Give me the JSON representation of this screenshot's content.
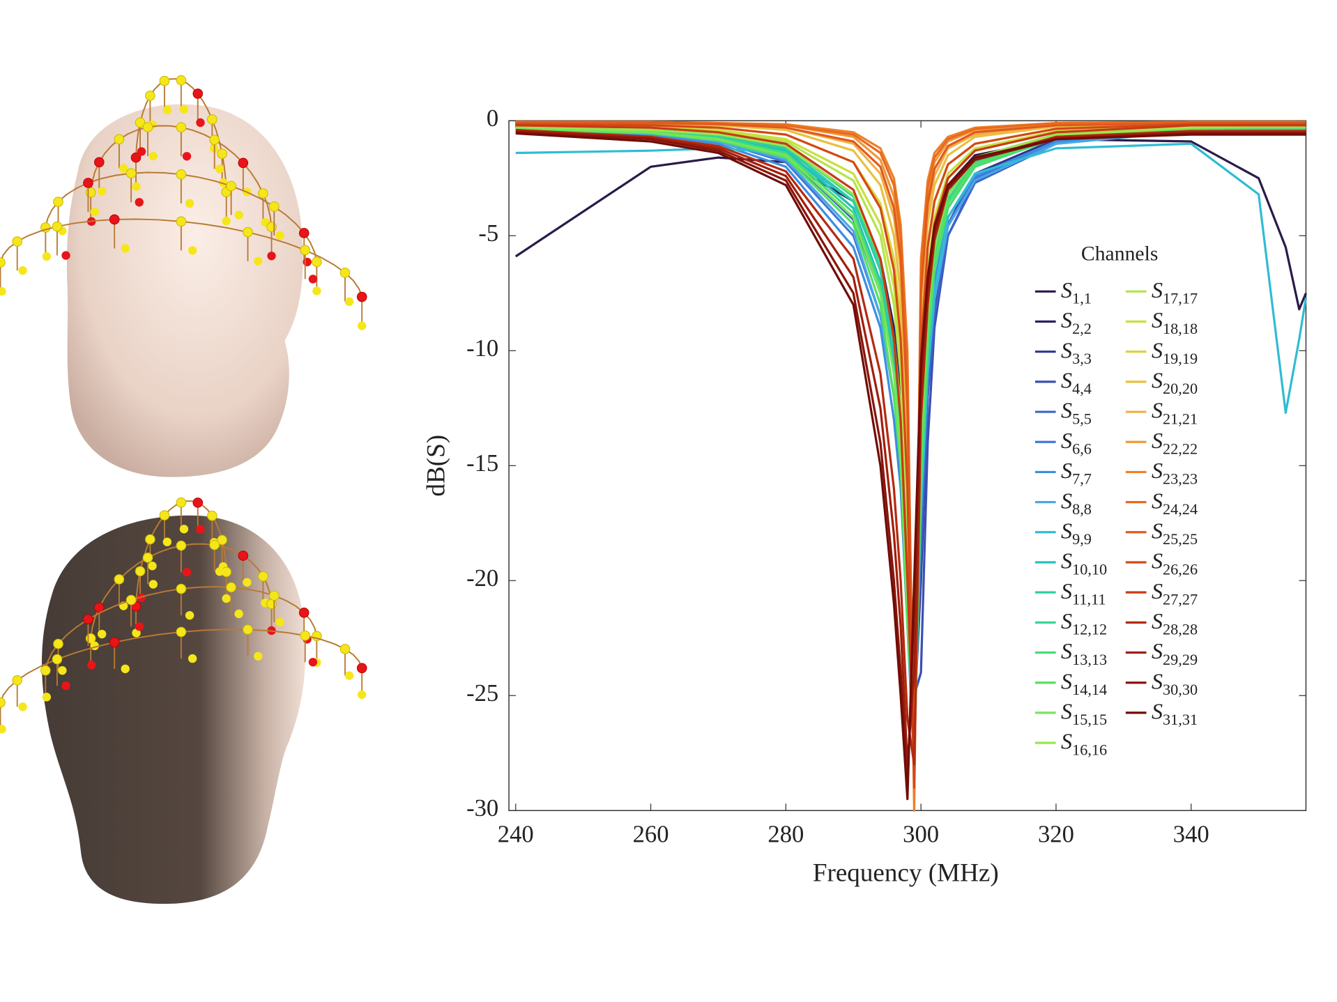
{
  "chart_data": {
    "type": "line",
    "x_label": "Frequency (MHz)",
    "y_label": "dB(S)",
    "legend_title": "Channels",
    "xlim": [
      239,
      357
    ],
    "ylim": [
      -30,
      0
    ],
    "xticks": [
      240,
      260,
      280,
      300,
      320,
      340
    ],
    "yticks": [
      0,
      -5,
      -10,
      -15,
      -20,
      -25,
      -30
    ],
    "x": [
      240,
      260,
      270,
      280,
      290,
      294,
      296,
      297,
      298,
      299,
      300,
      301,
      302,
      304,
      308,
      320,
      340,
      350,
      354,
      356,
      357
    ],
    "series": [
      {
        "name": "S1,1",
        "color": "#2a1a4a",
        "values": [
          -5.9,
          -2.0,
          -1.6,
          -1.8,
          -3.5,
          -6,
          -9,
          -12,
          -18,
          -25,
          -14,
          -8,
          -5,
          -2.8,
          -1.5,
          -0.8,
          -0.9,
          -2.5,
          -5.5,
          -8.2,
          -7.5
        ]
      },
      {
        "name": "S2,2",
        "color": "#2e2060",
        "values": [
          -0.3,
          -0.4,
          -0.6,
          -1.1,
          -3.2,
          -6,
          -9,
          -12,
          -18,
          -27,
          -16,
          -9,
          -6,
          -3.2,
          -1.6,
          -0.6,
          -0.3,
          -0.3,
          -0.3,
          -0.3,
          -0.3
        ]
      },
      {
        "name": "S3,3",
        "color": "#2f3590",
        "values": [
          -0.3,
          -0.4,
          -0.6,
          -1.2,
          -3.5,
          -6.5,
          -10,
          -13,
          -20,
          -26,
          -20,
          -12,
          -8,
          -4.5,
          -2.3,
          -0.8,
          -0.35,
          -0.3,
          -0.3,
          -0.3,
          -0.3
        ]
      },
      {
        "name": "S4,4",
        "color": "#3a4fb0",
        "values": [
          -0.3,
          -0.5,
          -0.7,
          -1.3,
          -3.8,
          -7,
          -10.5,
          -13.5,
          -19,
          -25,
          -24,
          -14,
          -9,
          -5,
          -2.6,
          -0.9,
          -0.4,
          -0.3,
          -0.3,
          -0.3,
          -0.3
        ]
      },
      {
        "name": "S5,5",
        "color": "#3d63c8",
        "values": [
          -0.3,
          -0.5,
          -0.8,
          -1.5,
          -4.3,
          -7.5,
          -11,
          -14,
          -20,
          -26,
          -19,
          -12,
          -8.5,
          -5,
          -2.7,
          -1,
          -0.4,
          -0.3,
          -0.3,
          -0.3,
          -0.3
        ]
      },
      {
        "name": "S6,6",
        "color": "#3f78d8",
        "values": [
          -0.35,
          -0.55,
          -0.9,
          -1.8,
          -5,
          -8.5,
          -12,
          -15,
          -21,
          -27,
          -17,
          -11,
          -7.5,
          -4.5,
          -2.5,
          -0.9,
          -0.4,
          -0.35,
          -0.35,
          -0.35,
          -0.35
        ]
      },
      {
        "name": "S7,7",
        "color": "#3b8ee0",
        "values": [
          -0.4,
          -0.6,
          -1,
          -2,
          -5.5,
          -9,
          -13,
          -16,
          -22,
          -28,
          -16,
          -10,
          -7,
          -4.2,
          -2.4,
          -0.9,
          -0.4,
          -0.35,
          -0.35,
          -0.35,
          -0.35
        ]
      },
      {
        "name": "S8,8",
        "color": "#4aa6e6",
        "values": [
          -0.35,
          -0.55,
          -0.9,
          -1.7,
          -4.8,
          -8.5,
          -12,
          -15,
          -21,
          -26,
          -17,
          -11,
          -7.8,
          -4.6,
          -2.6,
          -1,
          -0.45,
          -0.4,
          -0.4,
          -0.4,
          -0.4
        ]
      },
      {
        "name": "S9,9",
        "color": "#30bcd4",
        "values": [
          -1.4,
          -1.3,
          -1.2,
          -1.4,
          -3.5,
          -6.5,
          -10,
          -13,
          -19,
          -25,
          -17,
          -11,
          -7.5,
          -4.2,
          -2.3,
          -1.2,
          -1.0,
          -3.2,
          -12.7,
          -9.5,
          -7.7
        ]
      },
      {
        "name": "S10,10",
        "color": "#20c4b8",
        "values": [
          -0.3,
          -0.5,
          -0.7,
          -1.3,
          -3.8,
          -7,
          -10.5,
          -14,
          -21,
          -27,
          -15,
          -9,
          -6,
          -3.5,
          -1.8,
          -0.7,
          -0.35,
          -0.3,
          -0.3,
          -0.3,
          -0.3
        ]
      },
      {
        "name": "S11,11",
        "color": "#2ccfa0",
        "values": [
          -0.3,
          -0.45,
          -0.7,
          -1.2,
          -3.5,
          -6.5,
          -10,
          -13,
          -20,
          -26,
          -14,
          -8.5,
          -5.5,
          -3.2,
          -1.7,
          -0.65,
          -0.3,
          -0.3,
          -0.3,
          -0.3,
          -0.3
        ]
      },
      {
        "name": "S12,12",
        "color": "#3ad690",
        "values": [
          -0.25,
          -0.4,
          -0.6,
          -1.1,
          -3.3,
          -6.2,
          -9.5,
          -12.5,
          -19,
          -27,
          -15,
          -9,
          -6,
          -3.4,
          -1.8,
          -0.7,
          -0.3,
          -0.25,
          -0.25,
          -0.25,
          -0.25
        ]
      },
      {
        "name": "S13,13",
        "color": "#45dc78",
        "values": [
          -0.3,
          -0.5,
          -0.75,
          -1.4,
          -4,
          -7.2,
          -11,
          -14,
          -21,
          -28,
          -16,
          -10,
          -6.5,
          -3.8,
          -2,
          -0.75,
          -0.35,
          -0.3,
          -0.3,
          -0.3,
          -0.3
        ]
      },
      {
        "name": "S14,14",
        "color": "#55e060",
        "values": [
          -0.35,
          -0.55,
          -0.85,
          -1.6,
          -4.5,
          -8,
          -12,
          -15,
          -22,
          -27,
          -15,
          -9.5,
          -6.2,
          -3.6,
          -1.9,
          -0.7,
          -0.35,
          -0.3,
          -0.3,
          -0.3,
          -0.3
        ]
      },
      {
        "name": "S15,15",
        "color": "#78e45a",
        "values": [
          -0.3,
          -0.5,
          -0.8,
          -1.5,
          -4.2,
          -7.5,
          -11,
          -14.5,
          -21,
          -26,
          -14,
          -8.5,
          -5.6,
          -3.2,
          -1.7,
          -0.65,
          -0.3,
          -0.3,
          -0.3,
          -0.3,
          -0.3
        ]
      },
      {
        "name": "S16,16",
        "color": "#98e650",
        "values": [
          -0.25,
          -0.4,
          -0.6,
          -1.1,
          -3.2,
          -6,
          -9.5,
          -12.5,
          -19,
          -25,
          -13,
          -8,
          -5.2,
          -3,
          -1.6,
          -0.6,
          -0.3,
          -0.25,
          -0.25,
          -0.25,
          -0.25
        ]
      },
      {
        "name": "S17,17",
        "color": "#b4e44a",
        "values": [
          -0.2,
          -0.3,
          -0.45,
          -0.9,
          -2.6,
          -5,
          -8,
          -11,
          -17,
          -24,
          -12,
          -7,
          -4.5,
          -2.5,
          -1.3,
          -0.5,
          -0.25,
          -0.2,
          -0.2,
          -0.2,
          -0.2
        ]
      },
      {
        "name": "S18,18",
        "color": "#c8e040",
        "values": [
          -0.2,
          -0.3,
          -0.4,
          -0.8,
          -2.3,
          -4.5,
          -7.2,
          -10,
          -16,
          -25,
          -11,
          -6.5,
          -4.2,
          -2.3,
          -1.2,
          -0.45,
          -0.2,
          -0.2,
          -0.2,
          -0.2,
          -0.2
        ]
      },
      {
        "name": "S19,19",
        "color": "#d8d23a",
        "values": [
          -0.15,
          -0.2,
          -0.3,
          -0.6,
          -1.8,
          -3.6,
          -6,
          -8.5,
          -14,
          -26,
          -10,
          -5.5,
          -3.5,
          -1.9,
          -1,
          -0.35,
          -0.15,
          -0.15,
          -0.15,
          -0.15,
          -0.15
        ]
      },
      {
        "name": "S20,20",
        "color": "#e8c040",
        "values": [
          -0.1,
          -0.15,
          -0.2,
          -0.4,
          -1.3,
          -2.8,
          -5,
          -7.5,
          -14,
          -27,
          -9,
          -4.5,
          -2.8,
          -1.5,
          -0.7,
          -0.25,
          -0.1,
          -0.1,
          -0.1,
          -0.1,
          -0.1
        ]
      },
      {
        "name": "S21,21",
        "color": "#f0b048",
        "values": [
          -0.1,
          -0.1,
          -0.15,
          -0.3,
          -1,
          -2.3,
          -4.2,
          -6.5,
          -13,
          -28,
          -8,
          -4,
          -2.4,
          -1.2,
          -0.6,
          -0.2,
          -0.1,
          -0.1,
          -0.1,
          -0.1,
          -0.1
        ]
      },
      {
        "name": "S22,22",
        "color": "#f09838",
        "values": [
          -0.05,
          -0.1,
          -0.1,
          -0.2,
          -0.7,
          -1.7,
          -3.3,
          -5.5,
          -12,
          -29,
          -7,
          -3.2,
          -1.8,
          -0.9,
          -0.4,
          -0.15,
          -0.05,
          -0.05,
          -0.05,
          -0.05,
          -0.05
        ]
      },
      {
        "name": "S23,23",
        "color": "#ec8028",
        "values": [
          -0.05,
          -0.05,
          -0.1,
          -0.15,
          -0.5,
          -1.2,
          -2.5,
          -4.5,
          -10,
          -30,
          -6,
          -2.6,
          -1.4,
          -0.7,
          -0.3,
          -0.1,
          -0.05,
          -0.05,
          -0.05,
          -0.05,
          -0.05
        ]
      },
      {
        "name": "S24,24",
        "color": "#e86a20",
        "values": [
          -0.05,
          -0.05,
          -0.1,
          -0.2,
          -0.6,
          -1.4,
          -2.8,
          -5,
          -11,
          -29,
          -6.5,
          -2.9,
          -1.6,
          -0.8,
          -0.35,
          -0.1,
          -0.05,
          -0.05,
          -0.05,
          -0.05,
          -0.05
        ]
      },
      {
        "name": "S25,25",
        "color": "#e05a1c",
        "values": [
          -0.1,
          -0.1,
          -0.15,
          -0.3,
          -0.9,
          -2,
          -3.8,
          -6,
          -12.5,
          -28,
          -7.5,
          -3.6,
          -2.1,
          -1.1,
          -0.5,
          -0.2,
          -0.1,
          -0.1,
          -0.1,
          -0.1,
          -0.1
        ]
      },
      {
        "name": "S26,26",
        "color": "#d44818",
        "values": [
          -0.15,
          -0.2,
          -0.3,
          -0.6,
          -1.8,
          -3.8,
          -6.5,
          -9.5,
          -16,
          -29,
          -10,
          -5.5,
          -3.5,
          -1.9,
          -1,
          -0.35,
          -0.15,
          -0.15,
          -0.15,
          -0.15,
          -0.15
        ]
      },
      {
        "name": "S27,27",
        "color": "#c83a14",
        "values": [
          -0.2,
          -0.3,
          -0.5,
          -1,
          -3,
          -6,
          -9.5,
          -13,
          -20,
          -28,
          -12,
          -7,
          -4.5,
          -2.5,
          -1.3,
          -0.5,
          -0.2,
          -0.2,
          -0.2,
          -0.2,
          -0.2
        ]
      },
      {
        "name": "S28,28",
        "color": "#b42a10",
        "values": [
          -0.4,
          -0.7,
          -1.1,
          -2.2,
          -6,
          -11,
          -16,
          -20,
          -26,
          -28,
          -13,
          -8,
          -5.2,
          -3,
          -1.7,
          -0.7,
          -0.45,
          -0.45,
          -0.45,
          -0.45,
          -0.45
        ]
      },
      {
        "name": "S29,29",
        "color": "#a01e0c",
        "values": [
          -0.45,
          -0.75,
          -1.2,
          -2.4,
          -6.8,
          -12.5,
          -18,
          -22,
          -28,
          -24,
          -12,
          -7.5,
          -5,
          -3,
          -1.7,
          -0.75,
          -0.5,
          -0.5,
          -0.5,
          -0.5,
          -0.5
        ]
      },
      {
        "name": "S30,30",
        "color": "#881408",
        "values": [
          -0.5,
          -0.8,
          -1.3,
          -2.6,
          -7.5,
          -14,
          -20,
          -24,
          -29,
          -21,
          -11,
          -7,
          -4.8,
          -2.9,
          -1.7,
          -0.8,
          -0.55,
          -0.55,
          -0.55,
          -0.55,
          -0.55
        ]
      },
      {
        "name": "S31,31",
        "color": "#700c06",
        "values": [
          -0.55,
          -0.9,
          -1.4,
          -2.8,
          -8,
          -15,
          -21,
          -25,
          -29.5,
          -20,
          -10.5,
          -6.8,
          -4.6,
          -2.8,
          -1.6,
          -0.8,
          -0.6,
          -0.6,
          -0.6,
          -0.6,
          -0.6
        ]
      }
    ]
  }
}
